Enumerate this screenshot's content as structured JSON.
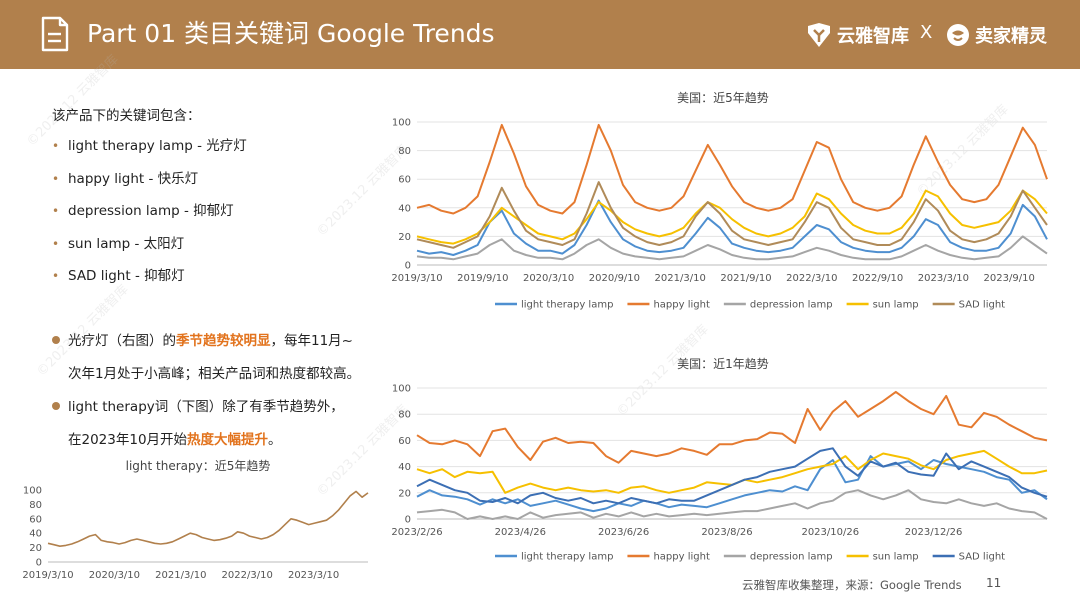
{
  "header": {
    "title": "Part 01 类目关键词 Google Trends",
    "brand1": "云雅智库",
    "separator": "X",
    "brand2": "卖家精灵"
  },
  "watermark": "©2023.12 云雅智库",
  "intro": "该产品下的关键词包含：",
  "keywords": [
    {
      "label": "light therapy lamp - 光疗灯"
    },
    {
      "label": "happy light - 快乐灯"
    },
    {
      "label": "depression lamp - 抑郁灯"
    },
    {
      "label": "sun lamp - 太阳灯"
    },
    {
      "label": "SAD light - 抑郁灯"
    }
  ],
  "notes": {
    "n1_a": "光疗灯（右图）的",
    "n1_hl": "季节趋势较明显",
    "n1_b": "，每年11月~",
    "n1_line2": "次年1月处于小高峰；相关产品词和热度都较高。",
    "n2_line1": "light therapy词（下图）除了有季节趋势外，",
    "n2_a": "在2023年10月开始",
    "n2_hl": "热度大幅提升",
    "n2_b": "。"
  },
  "footer": {
    "source": "云雅智库收集整理，来源：Google Trends",
    "page": "11"
  },
  "chart_data": [
    {
      "type": "line",
      "title": "美国：近5年趋势",
      "x_ticks": [
        "2019/3/10",
        "2019/9/10",
        "2020/3/10",
        "2020/9/10",
        "2021/3/10",
        "2021/9/10",
        "2022/3/10",
        "2022/9/10",
        "2023/3/10",
        "2023/9/10"
      ],
      "ylim": [
        0,
        100
      ],
      "y_ticks": [
        0,
        20,
        40,
        60,
        80,
        100
      ],
      "legend_position": "bottom",
      "series": [
        {
          "name": "light therapy lamp",
          "color": "#4e8fd0",
          "values": [
            10,
            8,
            9,
            7,
            10,
            14,
            30,
            38,
            22,
            15,
            10,
            10,
            8,
            14,
            28,
            45,
            30,
            18,
            13,
            10,
            9,
            10,
            12,
            22,
            33,
            26,
            15,
            12,
            10,
            9,
            10,
            12,
            20,
            28,
            25,
            16,
            12,
            10,
            9,
            9,
            12,
            20,
            32,
            28,
            16,
            12,
            10,
            10,
            12,
            22,
            42,
            34,
            18
          ]
        },
        {
          "name": "happy light",
          "color": "#e57a30",
          "values": [
            40,
            42,
            38,
            36,
            40,
            48,
            72,
            98,
            78,
            55,
            42,
            38,
            36,
            44,
            70,
            98,
            80,
            56,
            44,
            40,
            38,
            40,
            48,
            66,
            84,
            70,
            55,
            44,
            40,
            38,
            40,
            46,
            66,
            86,
            82,
            60,
            44,
            40,
            38,
            40,
            48,
            70,
            90,
            72,
            56,
            46,
            44,
            46,
            56,
            76,
            96,
            84,
            60
          ]
        },
        {
          "name": "depression lamp",
          "color": "#a5a5a5",
          "values": [
            6,
            5,
            5,
            4,
            6,
            8,
            14,
            18,
            10,
            7,
            5,
            5,
            4,
            8,
            14,
            18,
            12,
            8,
            6,
            5,
            4,
            5,
            6,
            10,
            14,
            11,
            7,
            5,
            4,
            4,
            5,
            6,
            9,
            12,
            10,
            7,
            5,
            4,
            4,
            4,
            6,
            10,
            14,
            10,
            7,
            5,
            4,
            5,
            6,
            12,
            20,
            14,
            8
          ]
        },
        {
          "name": "sun lamp",
          "color": "#f6c000",
          "values": [
            20,
            18,
            16,
            15,
            18,
            22,
            30,
            40,
            34,
            28,
            22,
            20,
            18,
            22,
            32,
            44,
            38,
            30,
            25,
            22,
            20,
            22,
            26,
            36,
            44,
            40,
            32,
            26,
            22,
            20,
            22,
            26,
            34,
            50,
            46,
            36,
            28,
            24,
            22,
            22,
            26,
            36,
            52,
            48,
            36,
            28,
            26,
            28,
            30,
            38,
            52,
            46,
            36
          ]
        },
        {
          "name": "SAD light",
          "color": "#b08b59",
          "values": [
            18,
            16,
            14,
            12,
            16,
            20,
            34,
            54,
            38,
            24,
            18,
            16,
            14,
            18,
            36,
            58,
            40,
            26,
            20,
            16,
            14,
            16,
            20,
            34,
            44,
            36,
            24,
            18,
            16,
            14,
            16,
            18,
            30,
            44,
            40,
            26,
            18,
            16,
            14,
            14,
            18,
            30,
            46,
            38,
            24,
            18,
            16,
            18,
            22,
            34,
            52,
            40,
            28
          ]
        }
      ]
    },
    {
      "type": "line",
      "title": "美国：近1年趋势",
      "x_ticks": [
        "2023/2/26",
        "2023/4/26",
        "2023/6/26",
        "2023/8/26",
        "2023/10/26",
        "2023/12/26"
      ],
      "ylim": [
        0,
        100
      ],
      "y_ticks": [
        0,
        20,
        40,
        60,
        80,
        100
      ],
      "legend_position": "bottom",
      "series": [
        {
          "name": "light therapy lamp",
          "color": "#4e8fd0",
          "values": [
            17,
            22,
            18,
            17,
            15,
            11,
            15,
            12,
            15,
            10,
            12,
            14,
            11,
            8,
            6,
            8,
            12,
            10,
            14,
            12,
            9,
            11,
            10,
            9,
            12,
            15,
            18,
            20,
            22,
            21,
            25,
            22,
            38,
            45,
            28,
            30,
            48,
            40,
            42,
            44,
            38,
            45,
            42,
            40,
            38,
            36,
            32,
            30,
            20,
            22,
            15
          ]
        },
        {
          "name": "happy light",
          "color": "#e57a30",
          "values": [
            64,
            58,
            57,
            60,
            57,
            48,
            67,
            69,
            55,
            45,
            59,
            62,
            58,
            59,
            58,
            48,
            43,
            52,
            50,
            48,
            50,
            54,
            52,
            49,
            57,
            57,
            60,
            61,
            66,
            65,
            58,
            84,
            68,
            82,
            90,
            78,
            84,
            90,
            97,
            90,
            84,
            80,
            94,
            72,
            70,
            81,
            78,
            72,
            67,
            62,
            60
          ]
        },
        {
          "name": "depression lamp",
          "color": "#a5a5a5",
          "values": [
            5,
            6,
            7,
            5,
            0,
            2,
            0,
            2,
            0,
            5,
            1,
            3,
            4,
            5,
            1,
            4,
            2,
            5,
            2,
            4,
            2,
            3,
            4,
            3,
            4,
            5,
            6,
            6,
            8,
            10,
            12,
            8,
            12,
            14,
            20,
            22,
            18,
            15,
            18,
            22,
            15,
            13,
            12,
            15,
            12,
            10,
            12,
            8,
            6,
            5,
            0
          ]
        },
        {
          "name": "sun lamp",
          "color": "#f6c000",
          "values": [
            38,
            35,
            38,
            32,
            36,
            35,
            36,
            20,
            24,
            27,
            24,
            22,
            24,
            22,
            21,
            22,
            20,
            24,
            25,
            22,
            20,
            22,
            24,
            28,
            27,
            26,
            30,
            28,
            30,
            32,
            35,
            38,
            40,
            42,
            48,
            38,
            45,
            50,
            48,
            46,
            41,
            38,
            45,
            48,
            50,
            52,
            46,
            40,
            35,
            35,
            37
          ]
        },
        {
          "name": "SAD light",
          "color": "#3c6fb4",
          "values": [
            25,
            30,
            26,
            22,
            20,
            14,
            13,
            16,
            12,
            18,
            20,
            16,
            14,
            16,
            12,
            14,
            12,
            16,
            14,
            12,
            15,
            14,
            14,
            18,
            22,
            26,
            30,
            32,
            36,
            38,
            40,
            46,
            52,
            54,
            40,
            33,
            44,
            40,
            43,
            36,
            34,
            33,
            50,
            38,
            44,
            40,
            36,
            32,
            24,
            20,
            17
          ]
        }
      ]
    },
    {
      "type": "line",
      "title": "light therapy：近5年趋势",
      "x_ticks": [
        "2019/3/10",
        "2020/3/10",
        "2021/3/10",
        "2022/3/10",
        "2023/3/10"
      ],
      "ylim": [
        0,
        100
      ],
      "y_ticks": [
        0,
        20,
        40,
        60,
        80,
        100
      ],
      "series": [
        {
          "name": "light therapy",
          "color": "#b1804c",
          "values": [
            26,
            24,
            22,
            23,
            25,
            28,
            32,
            36,
            38,
            30,
            28,
            27,
            25,
            27,
            30,
            32,
            30,
            28,
            26,
            25,
            26,
            28,
            32,
            36,
            40,
            38,
            34,
            32,
            30,
            31,
            33,
            36,
            42,
            40,
            36,
            34,
            32,
            34,
            38,
            44,
            52,
            60,
            58,
            55,
            52,
            54,
            56,
            58,
            64,
            72,
            82,
            92,
            98,
            90,
            96
          ]
        }
      ]
    }
  ]
}
